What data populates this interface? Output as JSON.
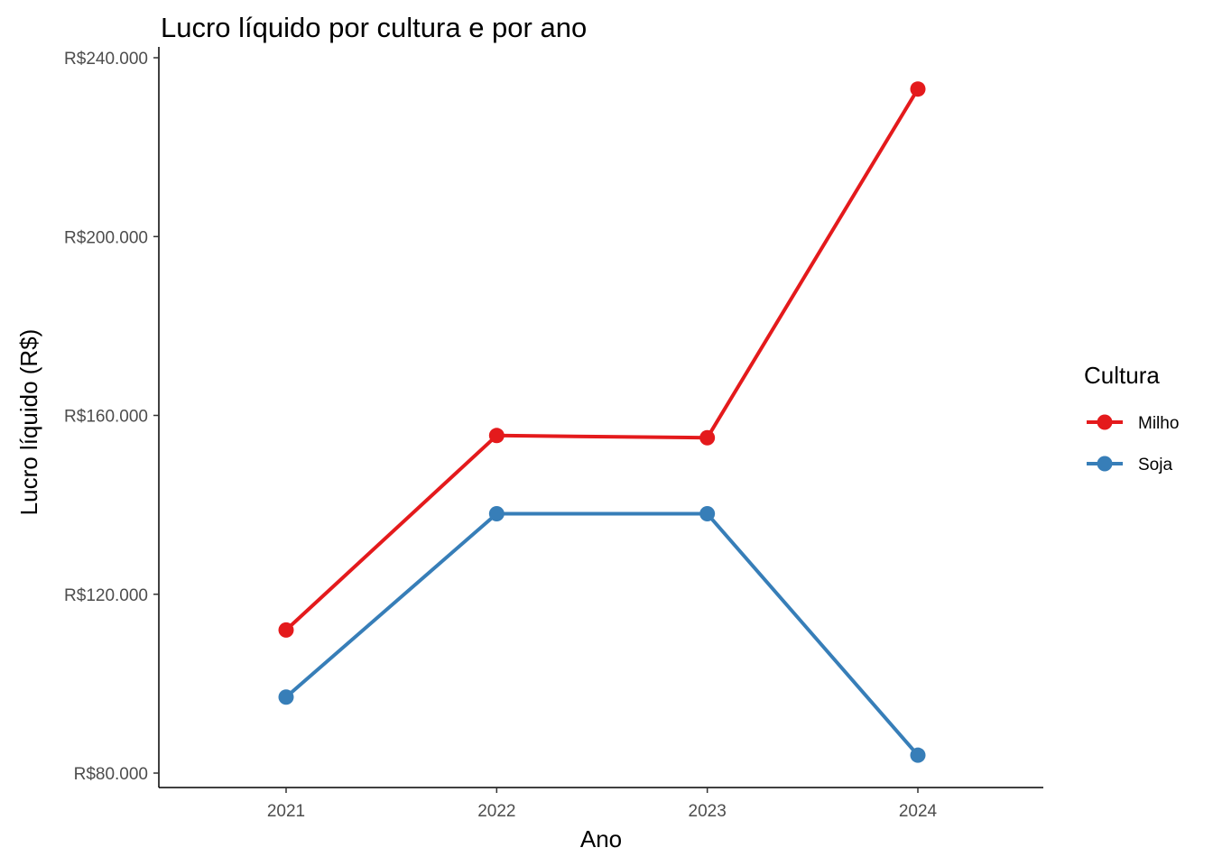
{
  "chart_data": {
    "type": "line",
    "title": "Lucro líquido por cultura e por ano",
    "xlabel": "Ano",
    "ylabel": "Lucro líquido (R$)",
    "x": [
      2021,
      2022,
      2023,
      2024
    ],
    "x_tick_labels": [
      "2021",
      "2022",
      "2023",
      "2024"
    ],
    "y_ticks": [
      80000,
      120000,
      160000,
      200000,
      240000
    ],
    "y_tick_labels": [
      "R$80.000",
      "R$120.000",
      "R$160.000",
      "R$200.000",
      "R$240.000"
    ],
    "ylim": [
      77000,
      240000
    ],
    "grid": false,
    "legend_position": "right",
    "legend_title": "Cultura",
    "series": [
      {
        "name": "Milho",
        "color": "#E41A1C",
        "values": [
          112000,
          155500,
          155000,
          233000
        ]
      },
      {
        "name": "Soja",
        "color": "#377EB8",
        "values": [
          97000,
          138000,
          138000,
          84000
        ]
      }
    ]
  }
}
